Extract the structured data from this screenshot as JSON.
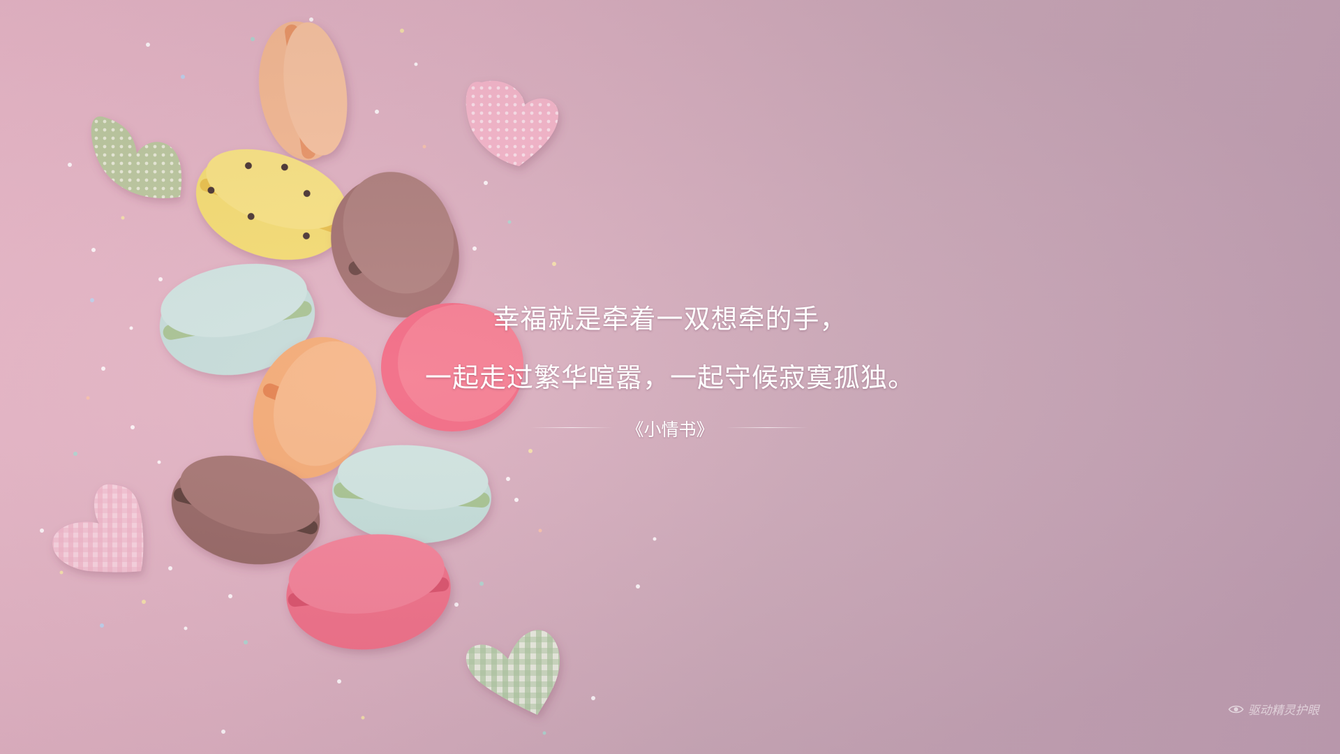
{
  "quote": {
    "line1": "幸福就是牵着一双想牵的手，",
    "line2": "一起走过繁华喧嚣，一起守候寂寞孤独。",
    "source": "《小情书》"
  },
  "watermark": {
    "icon": "eye-icon",
    "label": "驱动精灵护眼"
  },
  "colors": {
    "background": "#dcb1c0",
    "text": "#ffffff"
  }
}
